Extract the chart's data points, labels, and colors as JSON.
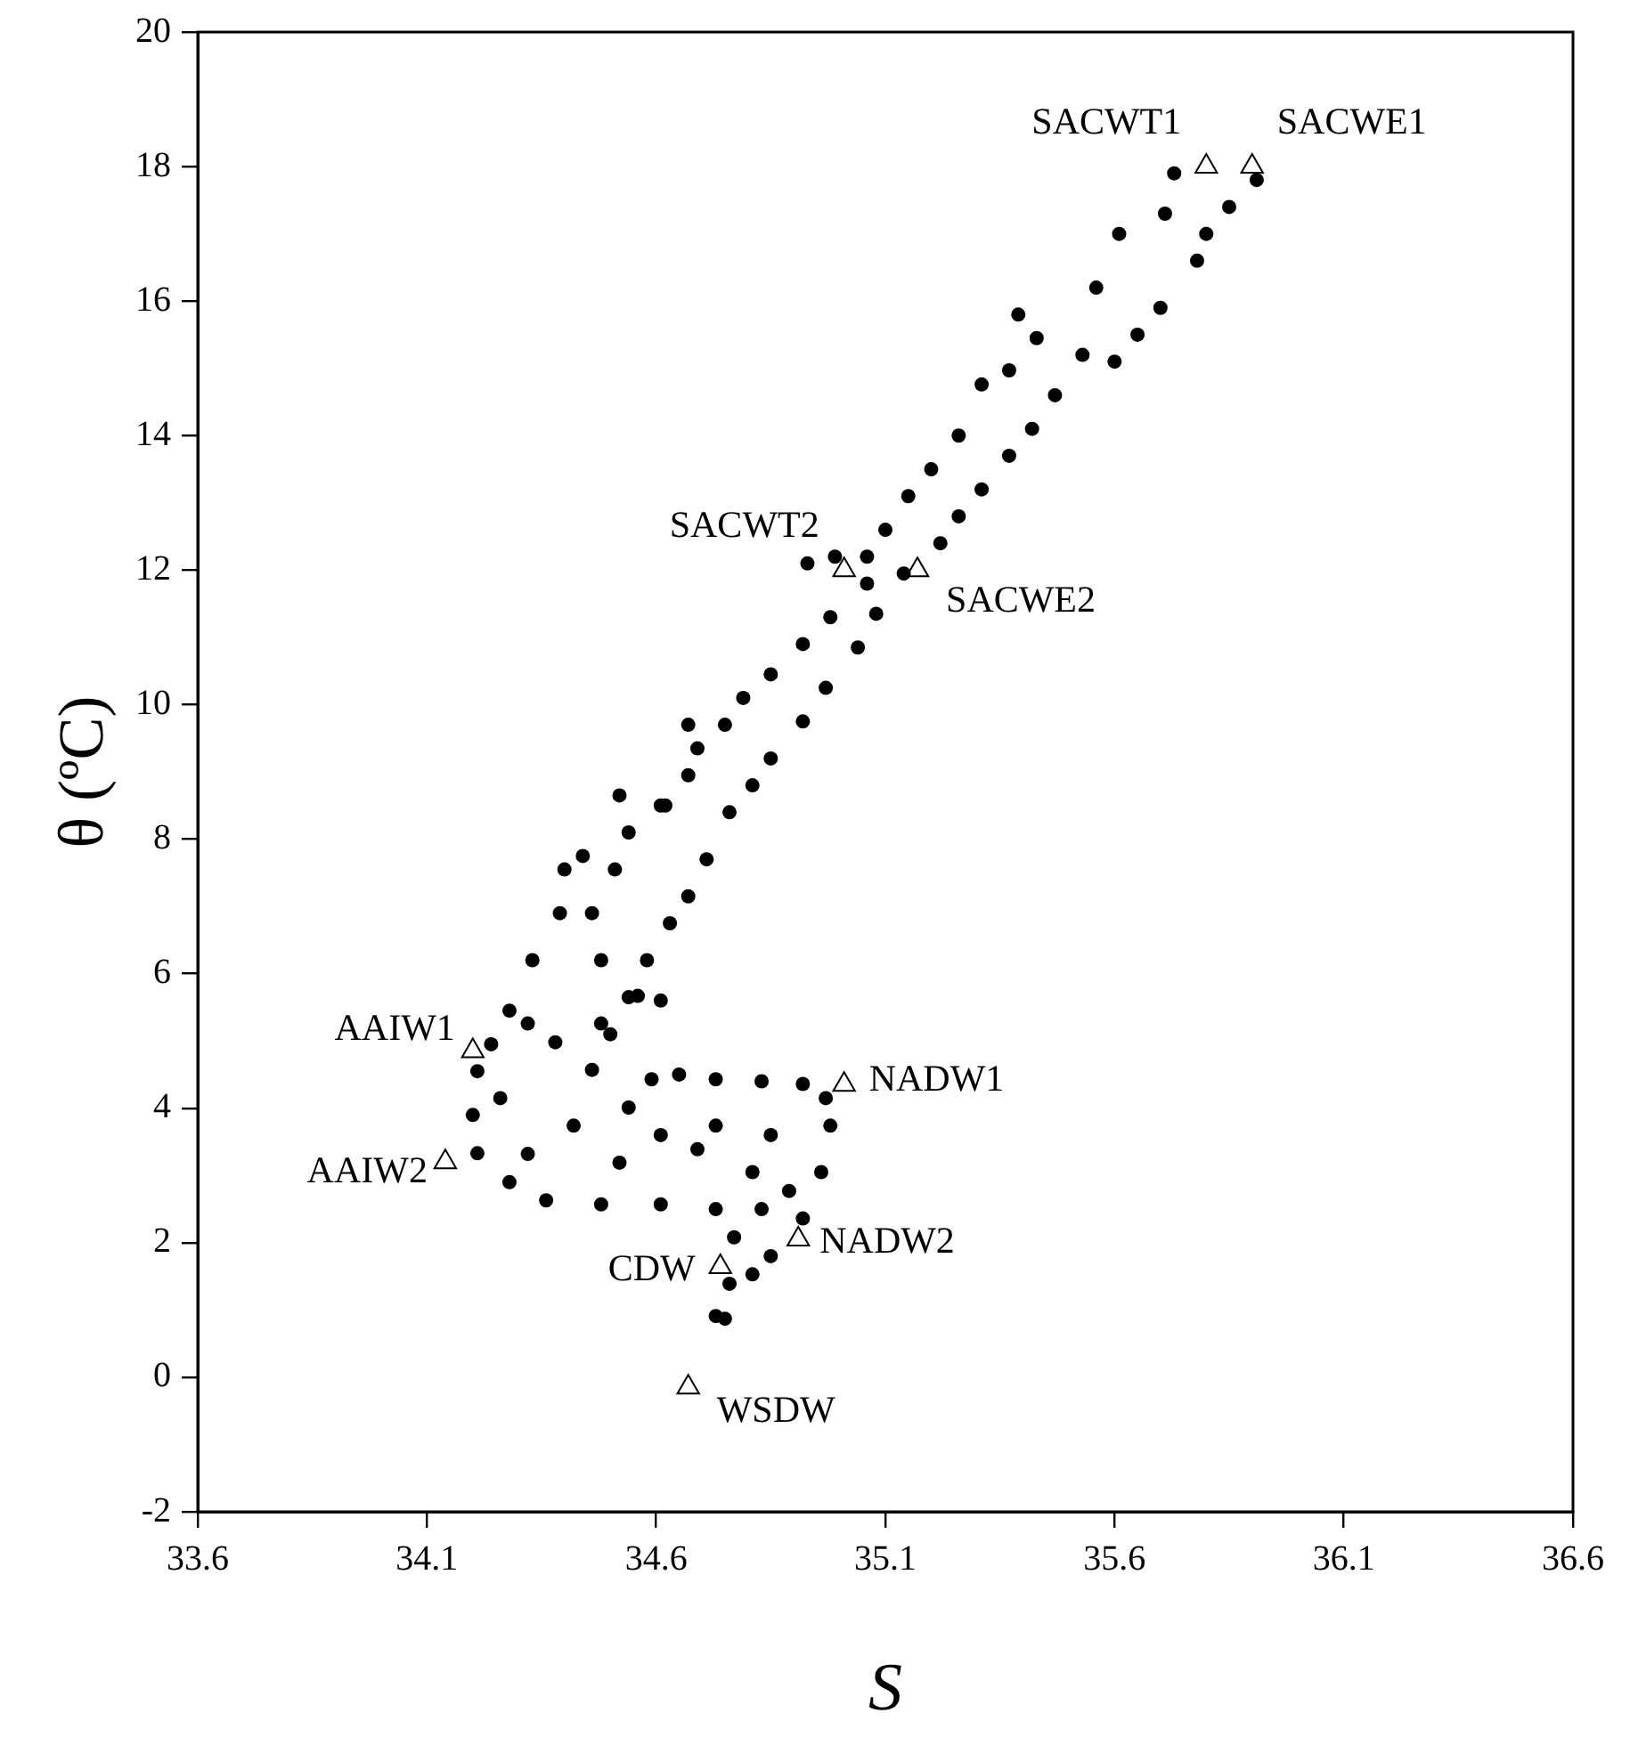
{
  "chart_data": {
    "type": "scatter",
    "xlabel": "S",
    "ylabel": "θ (ºC)",
    "xlim": [
      33.6,
      36.6
    ],
    "xticks": [
      33.6,
      34.1,
      34.6,
      35.1,
      35.6,
      36.1,
      36.6
    ],
    "ylim": [
      -2,
      20
    ],
    "yticks": [
      -2,
      0,
      2,
      4,
      6,
      8,
      10,
      12,
      14,
      16,
      18,
      20
    ],
    "grid": false,
    "legend": false,
    "series": [
      {
        "color": "#000000",
        "marker": "circle",
        "x": [
          35.73,
          35.71,
          35.61,
          35.56,
          35.39,
          35.43,
          35.37,
          35.31,
          35.26,
          35.2,
          35.15,
          35.1,
          35.06,
          34.99,
          34.93,
          35.91,
          35.85,
          35.8,
          35.78,
          35.7,
          35.65,
          35.6,
          35.53,
          35.47,
          35.42,
          35.37,
          35.31,
          35.26,
          35.22,
          35.06,
          34.98,
          34.92,
          34.85,
          34.79,
          34.75,
          34.69,
          34.67,
          34.62,
          34.54,
          34.52,
          34.51,
          34.44,
          34.4,
          34.39,
          34.33,
          34.28,
          34.24,
          35.14,
          35.08,
          35.04,
          34.97,
          34.92,
          34.85,
          34.81,
          34.76,
          34.71,
          34.67,
          34.63,
          34.58,
          34.54,
          34.5,
          34.61,
          34.67,
          34.61,
          34.46,
          34.48,
          34.21,
          34.2,
          34.21,
          34.28,
          34.36,
          34.48,
          34.61,
          34.73,
          34.77,
          34.76,
          34.73,
          34.75,
          34.81,
          34.85,
          34.92,
          34.96,
          34.98,
          34.97,
          34.92,
          34.83,
          34.73,
          34.65,
          34.59,
          34.54,
          34.61,
          34.69,
          34.46,
          34.38,
          34.48,
          34.32,
          34.42,
          34.32,
          34.52,
          34.81,
          34.85,
          34.73,
          34.89,
          34.83,
          34.26,
          34.56
        ],
        "values": [
          17.9,
          17.3,
          17.0,
          16.2,
          15.8,
          15.45,
          14.97,
          14.76,
          14.0,
          13.5,
          13.1,
          12.6,
          12.2,
          12.2,
          12.1,
          17.8,
          17.4,
          17.0,
          16.6,
          15.9,
          15.5,
          15.1,
          15.2,
          14.6,
          14.1,
          13.7,
          13.2,
          12.8,
          12.4,
          11.8,
          11.3,
          10.9,
          10.45,
          10.1,
          9.7,
          9.35,
          8.95,
          8.5,
          8.1,
          8.65,
          7.55,
          7.75,
          7.55,
          6.9,
          6.2,
          5.45,
          4.95,
          11.95,
          11.35,
          10.85,
          10.25,
          9.75,
          9.2,
          8.8,
          8.4,
          7.7,
          7.15,
          6.75,
          6.2,
          5.65,
          5.1,
          5.6,
          9.7,
          8.5,
          6.9,
          6.2,
          4.55,
          3.9,
          3.33,
          2.9,
          2.63,
          2.57,
          2.57,
          2.5,
          2.08,
          1.39,
          0.91,
          0.87,
          1.53,
          1.8,
          2.36,
          3.05,
          3.74,
          4.15,
          4.36,
          4.4,
          4.43,
          4.5,
          4.43,
          4.01,
          3.6,
          3.39,
          4.57,
          4.98,
          5.26,
          5.26,
          3.74,
          3.32,
          3.19,
          3.05,
          3.6,
          3.74,
          2.77,
          2.5,
          4.15,
          5.67
        ]
      },
      {
        "color": "#000000",
        "marker": "triangle",
        "x": [
          35.8,
          35.9,
          35.01,
          35.17,
          34.2,
          34.14,
          35.01,
          34.91,
          34.74,
          34.67
        ],
        "values": [
          18,
          18,
          12,
          12,
          4.85,
          3.2,
          4.35,
          2.05,
          1.64,
          -0.15
        ]
      }
    ],
    "annotations": [
      {
        "text": "SACWT1",
        "x": 35.8,
        "y": 18
      },
      {
        "text": "SACWE1",
        "x": 35.9,
        "y": 18
      },
      {
        "text": "SACWT2",
        "x": 35.01,
        "y": 12
      },
      {
        "text": "SACWE2",
        "x": 35.17,
        "y": 12
      },
      {
        "text": "AAIW1",
        "x": 34.2,
        "y": 4.85
      },
      {
        "text": "AAIW2",
        "x": 34.14,
        "y": 3.2
      },
      {
        "text": "NADW1",
        "x": 35.01,
        "y": 4.35
      },
      {
        "text": "NADW2",
        "x": 34.91,
        "y": 2.05
      },
      {
        "text": "CDW",
        "x": 34.74,
        "y": 1.64
      },
      {
        "text": "WSDW",
        "x": 34.67,
        "y": -0.15
      }
    ]
  }
}
